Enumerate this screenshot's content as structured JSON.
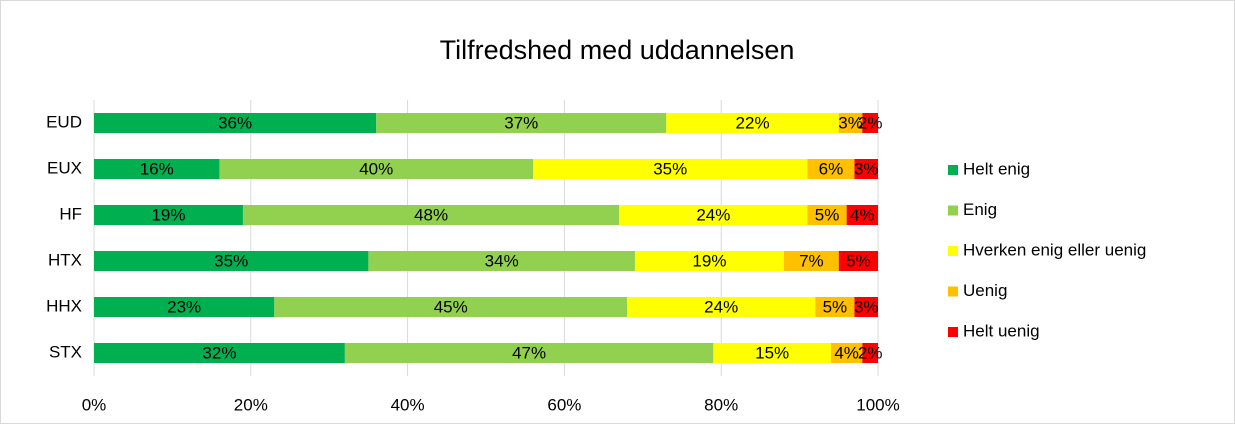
{
  "chart_data": {
    "type": "bar",
    "orientation": "horizontal",
    "stacked": true,
    "title": "Tilfredshed med uddannelsen",
    "categories": [
      "EUD",
      "EUX",
      "HF",
      "HTX",
      "HHX",
      "STX"
    ],
    "series": [
      {
        "name": "Helt enig",
        "color": "#00b050",
        "values": [
          36,
          16,
          19,
          35,
          23,
          32
        ],
        "value_labels": [
          "36%",
          "16%",
          "19%",
          "35%",
          "23%",
          "32%"
        ]
      },
      {
        "name": "Enig",
        "color": "#92d050",
        "values": [
          37,
          40,
          48,
          34,
          45,
          47
        ],
        "value_labels": [
          "37%",
          "40%",
          "48%",
          "34%",
          "45%",
          "47%"
        ]
      },
      {
        "name": "Hverken enig eller uenig",
        "color": "#ffff00",
        "values": [
          22,
          35,
          24,
          19,
          24,
          15
        ],
        "value_labels": [
          "22%",
          "35%",
          "24%",
          "19%",
          "24%",
          "15%"
        ]
      },
      {
        "name": "Uenig",
        "color": "#ffc000",
        "values": [
          3,
          6,
          5,
          7,
          5,
          4
        ],
        "value_labels": [
          "3%",
          "6%",
          "5%",
          "7%",
          "5%",
          "4%"
        ]
      },
      {
        "name": "Helt uenig",
        "color": "#ff0000",
        "values": [
          2,
          3,
          4,
          5,
          3,
          2
        ],
        "value_labels": [
          "2%",
          "3%",
          "4%",
          "5%",
          "3%",
          "2%"
        ]
      }
    ],
    "xlim": [
      0,
      100
    ],
    "xticks": [
      {
        "value": 0,
        "label": "0%"
      },
      {
        "value": 20,
        "label": "20%"
      },
      {
        "value": 40,
        "label": "40%"
      },
      {
        "value": 60,
        "label": "60%"
      },
      {
        "value": 80,
        "label": "80%"
      },
      {
        "value": 100,
        "label": "100%"
      }
    ],
    "grid": true,
    "legend": "right"
  }
}
